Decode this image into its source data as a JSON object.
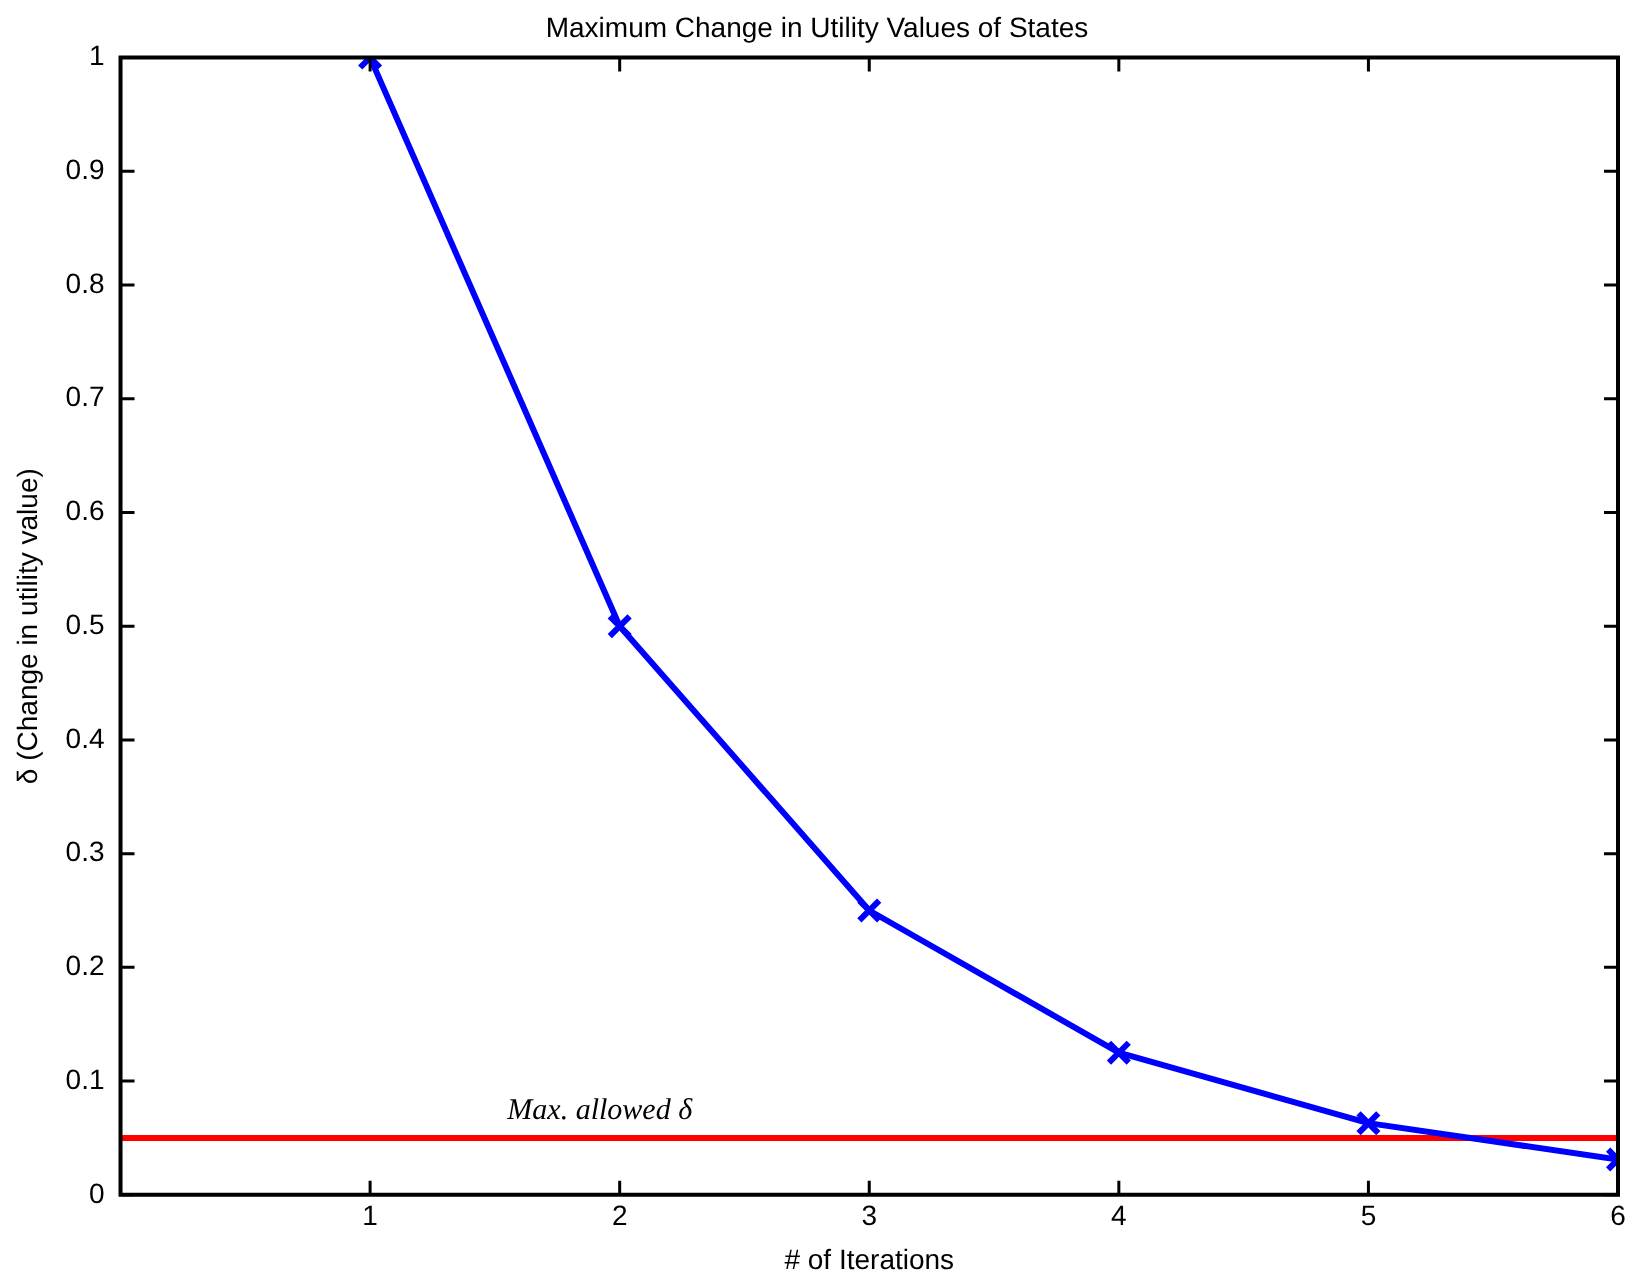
{
  "chart_data": {
    "type": "line",
    "title": "Maximum Change in Utility Values of States",
    "xlabel": "# of Iterations",
    "ylabel": "δ (Change in utility value)",
    "x": [
      1,
      2,
      3,
      4,
      5,
      6
    ],
    "series": [
      {
        "color": "#0000ff",
        "values": [
          1,
          0.5,
          0.25,
          0.125,
          0.063,
          0.031
        ]
      }
    ],
    "xlim": [
      0,
      6
    ],
    "xticks": [
      1,
      2,
      3,
      4,
      5,
      6
    ],
    "ylim": [
      0,
      1
    ],
    "yticks": [
      0,
      0.1,
      0.2,
      0.3,
      0.4,
      0.5,
      0.6,
      0.7,
      0.8,
      0.9,
      1
    ],
    "ref_lines": [
      {
        "axis": "y",
        "value": 0.05,
        "label": "Max. allowed δ",
        "color": "#ff0000"
      }
    ],
    "grid": false,
    "legend": false,
    "marker": "cross",
    "line_style": "solid"
  }
}
